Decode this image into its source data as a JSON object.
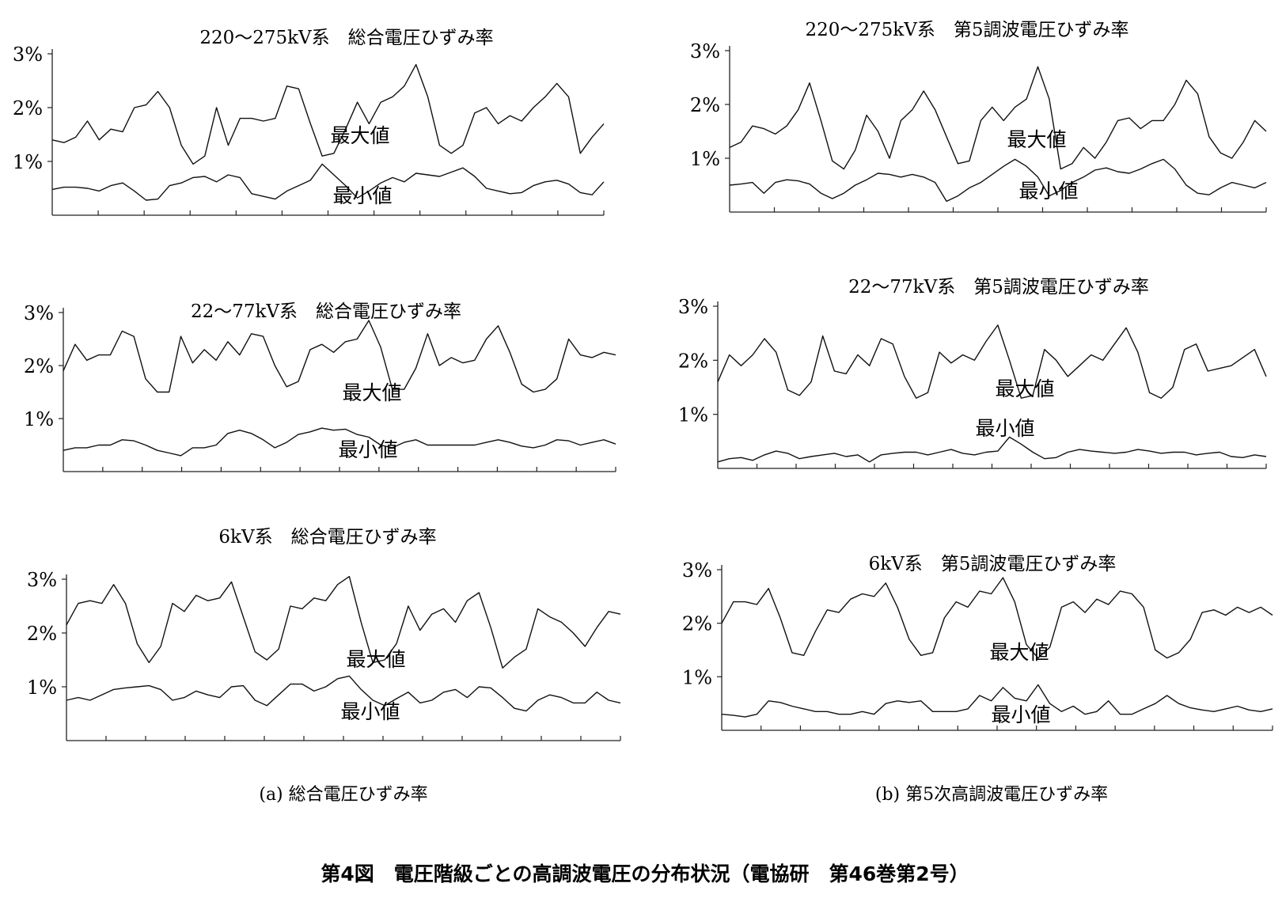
{
  "figure": {
    "caption_a": "(a) 総合電圧ひずみ率",
    "caption_b": "(b) 第5次高調波電圧ひずみ率",
    "title": "第4図　電圧階級ごとの高調波電圧の分布状況（電協研　第46巻第2号）"
  },
  "chart_data": [
    {
      "type": "line",
      "title": "220～275kV系　総合電圧ひずみ率",
      "xlabel": "",
      "ylabel": "",
      "ylim": [
        0,
        3
      ],
      "yticks": [
        "1%",
        "2%",
        "3%"
      ],
      "x_tick_count": 12,
      "x": [
        0,
        1,
        2,
        3,
        4,
        5,
        6,
        7,
        8,
        9,
        10,
        11,
        12,
        13,
        14,
        15,
        16,
        17,
        18,
        19,
        20,
        21,
        22,
        23,
        24,
        25,
        26,
        27,
        28,
        29,
        30,
        31,
        32,
        33,
        34,
        35,
        36,
        37,
        38,
        39,
        40,
        41,
        42,
        43,
        44,
        45,
        46,
        47
      ],
      "series": [
        {
          "name": "最大値",
          "values": [
            1.4,
            1.35,
            1.45,
            1.75,
            1.4,
            1.6,
            1.55,
            2.0,
            2.05,
            2.3,
            2.0,
            1.3,
            0.95,
            1.1,
            2.0,
            1.3,
            1.8,
            1.8,
            1.75,
            1.8,
            2.4,
            2.35,
            1.7,
            1.1,
            1.15,
            1.6,
            2.1,
            1.7,
            2.1,
            2.2,
            2.4,
            2.8,
            2.2,
            1.3,
            1.15,
            1.3,
            1.9,
            2.0,
            1.7,
            1.85,
            1.75,
            2.0,
            2.2,
            2.45,
            2.2,
            1.15,
            1.45,
            1.7
          ]
        },
        {
          "name": "最小値",
          "values": [
            0.48,
            0.52,
            0.52,
            0.5,
            0.45,
            0.55,
            0.6,
            0.45,
            0.28,
            0.3,
            0.55,
            0.6,
            0.7,
            0.72,
            0.62,
            0.75,
            0.7,
            0.4,
            0.35,
            0.3,
            0.45,
            0.55,
            0.65,
            0.95,
            0.75,
            0.55,
            0.32,
            0.45,
            0.6,
            0.7,
            0.62,
            0.78,
            0.75,
            0.72,
            0.8,
            0.88,
            0.72,
            0.5,
            0.45,
            0.4,
            0.42,
            0.55,
            0.62,
            0.65,
            0.58,
            0.42,
            0.38,
            0.62
          ]
        }
      ]
    },
    {
      "type": "line",
      "title": "220～275kV系　第5調波電圧ひずみ率",
      "xlabel": "",
      "ylabel": "",
      "ylim": [
        0,
        3
      ],
      "yticks": [
        "1%",
        "2%",
        "3%"
      ],
      "x_tick_count": 12,
      "x": [
        0,
        1,
        2,
        3,
        4,
        5,
        6,
        7,
        8,
        9,
        10,
        11,
        12,
        13,
        14,
        15,
        16,
        17,
        18,
        19,
        20,
        21,
        22,
        23,
        24,
        25,
        26,
        27,
        28,
        29,
        30,
        31,
        32,
        33,
        34,
        35,
        36,
        37,
        38,
        39,
        40,
        41,
        42,
        43,
        44,
        45,
        46,
        47
      ],
      "series": [
        {
          "name": "最大値",
          "values": [
            1.2,
            1.3,
            1.6,
            1.55,
            1.45,
            1.6,
            1.9,
            2.4,
            1.7,
            0.95,
            0.8,
            1.15,
            1.8,
            1.5,
            1.0,
            1.7,
            1.9,
            2.25,
            1.9,
            1.4,
            0.9,
            0.95,
            1.7,
            1.95,
            1.7,
            1.95,
            2.1,
            2.7,
            2.1,
            0.8,
            0.9,
            1.2,
            1.0,
            1.3,
            1.7,
            1.75,
            1.55,
            1.7,
            1.7,
            2.0,
            2.45,
            2.2,
            1.4,
            1.1,
            1.0,
            1.3,
            1.7,
            1.5
          ]
        },
        {
          "name": "最小値",
          "values": [
            0.5,
            0.52,
            0.55,
            0.35,
            0.55,
            0.6,
            0.58,
            0.52,
            0.35,
            0.25,
            0.35,
            0.5,
            0.6,
            0.72,
            0.7,
            0.65,
            0.7,
            0.65,
            0.55,
            0.2,
            0.3,
            0.45,
            0.55,
            0.7,
            0.85,
            0.98,
            0.85,
            0.65,
            0.3,
            0.4,
            0.55,
            0.65,
            0.78,
            0.82,
            0.75,
            0.72,
            0.8,
            0.9,
            0.98,
            0.8,
            0.5,
            0.35,
            0.32,
            0.45,
            0.55,
            0.5,
            0.45,
            0.55
          ]
        }
      ]
    },
    {
      "type": "line",
      "title": "22～77kV系　総合電圧ひずみ率",
      "xlabel": "",
      "ylabel": "",
      "ylim": [
        0,
        3
      ],
      "yticks": [
        "1%",
        "2%",
        "3%"
      ],
      "x_tick_count": 14,
      "x": [
        0,
        1,
        2,
        3,
        4,
        5,
        6,
        7,
        8,
        9,
        10,
        11,
        12,
        13,
        14,
        15,
        16,
        17,
        18,
        19,
        20,
        21,
        22,
        23,
        24,
        25,
        26,
        27,
        28,
        29,
        30,
        31,
        32,
        33,
        34,
        35,
        36,
        37,
        38,
        39,
        40,
        41,
        42,
        43,
        44,
        45,
        46,
        47
      ],
      "series": [
        {
          "name": "最大値",
          "values": [
            1.9,
            2.4,
            2.1,
            2.2,
            2.2,
            2.65,
            2.55,
            1.75,
            1.5,
            1.5,
            2.55,
            2.05,
            2.3,
            2.1,
            2.45,
            2.2,
            2.6,
            2.55,
            2.0,
            1.6,
            1.7,
            2.3,
            2.4,
            2.25,
            2.45,
            2.5,
            2.85,
            2.35,
            1.55,
            1.55,
            1.95,
            2.6,
            2.0,
            2.15,
            2.05,
            2.1,
            2.5,
            2.75,
            2.25,
            1.65,
            1.5,
            1.55,
            1.75,
            2.5,
            2.2,
            2.15,
            2.25,
            2.2
          ]
        },
        {
          "name": "最小値",
          "values": [
            0.4,
            0.45,
            0.45,
            0.5,
            0.5,
            0.6,
            0.58,
            0.5,
            0.4,
            0.35,
            0.3,
            0.45,
            0.45,
            0.5,
            0.72,
            0.78,
            0.72,
            0.6,
            0.45,
            0.55,
            0.7,
            0.75,
            0.82,
            0.78,
            0.8,
            0.7,
            0.65,
            0.5,
            0.45,
            0.55,
            0.6,
            0.5,
            0.5,
            0.5,
            0.5,
            0.5,
            0.55,
            0.6,
            0.55,
            0.48,
            0.45,
            0.5,
            0.6,
            0.58,
            0.5,
            0.55,
            0.6,
            0.52
          ]
        }
      ]
    },
    {
      "type": "line",
      "title": "22～77kV系　第5調波電圧ひずみ率",
      "xlabel": "",
      "ylabel": "",
      "ylim": [
        0,
        3
      ],
      "yticks": [
        "1%",
        "2%",
        "3%"
      ],
      "x_tick_count": 14,
      "x": [
        0,
        1,
        2,
        3,
        4,
        5,
        6,
        7,
        8,
        9,
        10,
        11,
        12,
        13,
        14,
        15,
        16,
        17,
        18,
        19,
        20,
        21,
        22,
        23,
        24,
        25,
        26,
        27,
        28,
        29,
        30,
        31,
        32,
        33,
        34,
        35,
        36,
        37,
        38,
        39,
        40,
        41,
        42,
        43,
        44,
        45,
        46,
        47
      ],
      "series": [
        {
          "name": "最大値",
          "values": [
            1.6,
            2.1,
            1.9,
            2.1,
            2.4,
            2.15,
            1.45,
            1.35,
            1.6,
            2.45,
            1.8,
            1.75,
            2.1,
            1.9,
            2.4,
            2.3,
            1.7,
            1.3,
            1.4,
            2.15,
            1.95,
            2.1,
            2.0,
            2.35,
            2.65,
            2.0,
            1.3,
            1.35,
            2.2,
            2.0,
            1.7,
            1.9,
            2.1,
            2.0,
            2.3,
            2.6,
            2.15,
            1.4,
            1.3,
            1.5,
            2.2,
            2.3,
            1.8,
            1.85,
            1.9,
            2.05,
            2.2,
            1.7
          ]
        },
        {
          "name": "最小値",
          "values": [
            0.12,
            0.18,
            0.2,
            0.15,
            0.25,
            0.32,
            0.28,
            0.18,
            0.22,
            0.25,
            0.28,
            0.22,
            0.25,
            0.12,
            0.25,
            0.28,
            0.3,
            0.3,
            0.25,
            0.3,
            0.35,
            0.28,
            0.25,
            0.3,
            0.32,
            0.58,
            0.45,
            0.3,
            0.18,
            0.2,
            0.3,
            0.35,
            0.32,
            0.3,
            0.28,
            0.3,
            0.35,
            0.32,
            0.28,
            0.3,
            0.3,
            0.25,
            0.28,
            0.3,
            0.22,
            0.2,
            0.25,
            0.22
          ]
        }
      ]
    },
    {
      "type": "line",
      "title": "6kV系　総合電圧ひずみ率",
      "xlabel": "",
      "ylabel": "",
      "ylim": [
        0,
        3
      ],
      "yticks": [
        "1%",
        "2%",
        "3%"
      ],
      "x_tick_count": 14,
      "x": [
        0,
        1,
        2,
        3,
        4,
        5,
        6,
        7,
        8,
        9,
        10,
        11,
        12,
        13,
        14,
        15,
        16,
        17,
        18,
        19,
        20,
        21,
        22,
        23,
        24,
        25,
        26,
        27,
        28,
        29,
        30,
        31,
        32,
        33,
        34,
        35,
        36,
        37,
        38,
        39,
        40,
        41,
        42,
        43,
        44,
        45,
        46,
        47
      ],
      "series": [
        {
          "name": "最大値",
          "values": [
            2.15,
            2.55,
            2.6,
            2.55,
            2.9,
            2.55,
            1.8,
            1.45,
            1.75,
            2.55,
            2.4,
            2.7,
            2.6,
            2.65,
            2.95,
            2.3,
            1.65,
            1.5,
            1.7,
            2.5,
            2.45,
            2.65,
            2.6,
            2.9,
            3.05,
            2.2,
            1.45,
            1.5,
            1.8,
            2.5,
            2.05,
            2.35,
            2.45,
            2.2,
            2.6,
            2.75,
            2.1,
            1.35,
            1.55,
            1.7,
            2.45,
            2.3,
            2.2,
            2.0,
            1.75,
            2.1,
            2.4,
            2.35
          ]
        },
        {
          "name": "最小値",
          "values": [
            0.75,
            0.8,
            0.75,
            0.85,
            0.95,
            0.98,
            1.0,
            1.02,
            0.95,
            0.75,
            0.8,
            0.92,
            0.85,
            0.8,
            1.0,
            1.02,
            0.75,
            0.65,
            0.85,
            1.05,
            1.05,
            0.92,
            1.0,
            1.15,
            1.2,
            0.95,
            0.75,
            0.65,
            0.78,
            0.9,
            0.7,
            0.75,
            0.9,
            0.95,
            0.8,
            1.0,
            0.98,
            0.8,
            0.6,
            0.55,
            0.75,
            0.85,
            0.8,
            0.7,
            0.7,
            0.9,
            0.75,
            0.7
          ]
        }
      ]
    },
    {
      "type": "line",
      "title": "6kV系　第5調波電圧ひずみ率",
      "xlabel": "",
      "ylabel": "",
      "ylim": [
        0,
        3
      ],
      "yticks": [
        "1%",
        "2%",
        "3%"
      ],
      "x_tick_count": 14,
      "x": [
        0,
        1,
        2,
        3,
        4,
        5,
        6,
        7,
        8,
        9,
        10,
        11,
        12,
        13,
        14,
        15,
        16,
        17,
        18,
        19,
        20,
        21,
        22,
        23,
        24,
        25,
        26,
        27,
        28,
        29,
        30,
        31,
        32,
        33,
        34,
        35,
        36,
        37,
        38,
        39,
        40,
        41,
        42,
        43,
        44,
        45,
        46,
        47
      ],
      "series": [
        {
          "name": "最大値",
          "values": [
            2.0,
            2.4,
            2.4,
            2.35,
            2.65,
            2.1,
            1.45,
            1.4,
            1.85,
            2.25,
            2.2,
            2.45,
            2.55,
            2.5,
            2.75,
            2.3,
            1.7,
            1.4,
            1.45,
            2.1,
            2.4,
            2.3,
            2.6,
            2.55,
            2.85,
            2.4,
            1.6,
            1.35,
            1.55,
            2.3,
            2.4,
            2.2,
            2.45,
            2.35,
            2.6,
            2.55,
            2.3,
            1.5,
            1.35,
            1.45,
            1.7,
            2.2,
            2.25,
            2.15,
            2.3,
            2.2,
            2.3,
            2.15
          ]
        },
        {
          "name": "最小値",
          "values": [
            0.3,
            0.28,
            0.25,
            0.3,
            0.55,
            0.52,
            0.45,
            0.4,
            0.35,
            0.35,
            0.3,
            0.3,
            0.35,
            0.3,
            0.5,
            0.55,
            0.52,
            0.55,
            0.35,
            0.35,
            0.35,
            0.4,
            0.65,
            0.55,
            0.8,
            0.6,
            0.55,
            0.85,
            0.5,
            0.35,
            0.45,
            0.3,
            0.35,
            0.55,
            0.3,
            0.3,
            0.4,
            0.5,
            0.65,
            0.5,
            0.42,
            0.38,
            0.35,
            0.4,
            0.45,
            0.38,
            0.35,
            0.4
          ]
        }
      ]
    }
  ]
}
